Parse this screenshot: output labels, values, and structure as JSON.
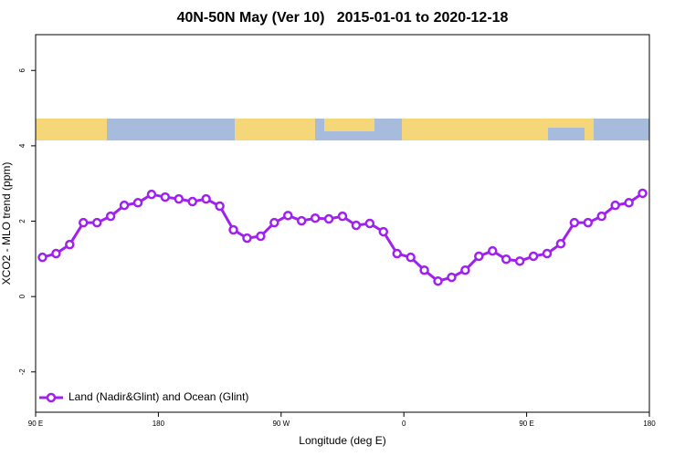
{
  "chart_data": {
    "type": "line",
    "title": "40N-50N May (Ver 10)   2015-01-01 to 2020-12-18",
    "x_label": "Longitude (deg E)",
    "y_label": "XCO2 - MLO trend (ppm)",
    "x": [
      95,
      105,
      115,
      125,
      135,
      145,
      155,
      165,
      175,
      185,
      195,
      205,
      215,
      225,
      235,
      245,
      255,
      265,
      275,
      285,
      295,
      305,
      315,
      325,
      335,
      345,
      355,
      365,
      375,
      385,
      395,
      405,
      415,
      425,
      435,
      445,
      455,
      465,
      475,
      485,
      495,
      505,
      515,
      525,
      535
    ],
    "series": [
      {
        "name": "Land (Nadir&Glint) and Ocean (Glint)",
        "color": "#a020f0",
        "values": [
          1.04,
          1.14,
          1.38,
          1.96,
          1.96,
          2.13,
          2.42,
          2.49,
          2.71,
          2.64,
          2.59,
          2.52,
          2.59,
          2.4,
          1.77,
          1.55,
          1.6,
          1.96,
          2.15,
          2.01,
          2.08,
          2.06,
          2.13,
          1.89,
          1.94,
          1.72,
          1.14,
          1.04,
          0.7,
          0.41,
          0.51,
          0.7,
          1.07,
          1.21,
          0.99,
          0.94,
          1.07,
          1.14,
          1.4,
          1.96,
          1.96,
          2.13,
          2.42,
          2.49,
          2.74
        ]
      }
    ],
    "xlim": [
      90,
      540
    ],
    "xticks": [
      {
        "value": 90,
        "label": "90 E"
      },
      180,
      {
        "value": 270,
        "label": "90 W"
      },
      {
        "value": 360,
        "label": "0"
      },
      {
        "value": 450,
        "label": "90 E"
      },
      {
        "value": 540,
        "label": "180"
      }
    ],
    "ylim": [
      -3.07,
      6.95
    ],
    "yticks": [
      -2,
      0,
      2,
      4,
      6
    ],
    "legend": "bottom-left",
    "grid": false
  }
}
